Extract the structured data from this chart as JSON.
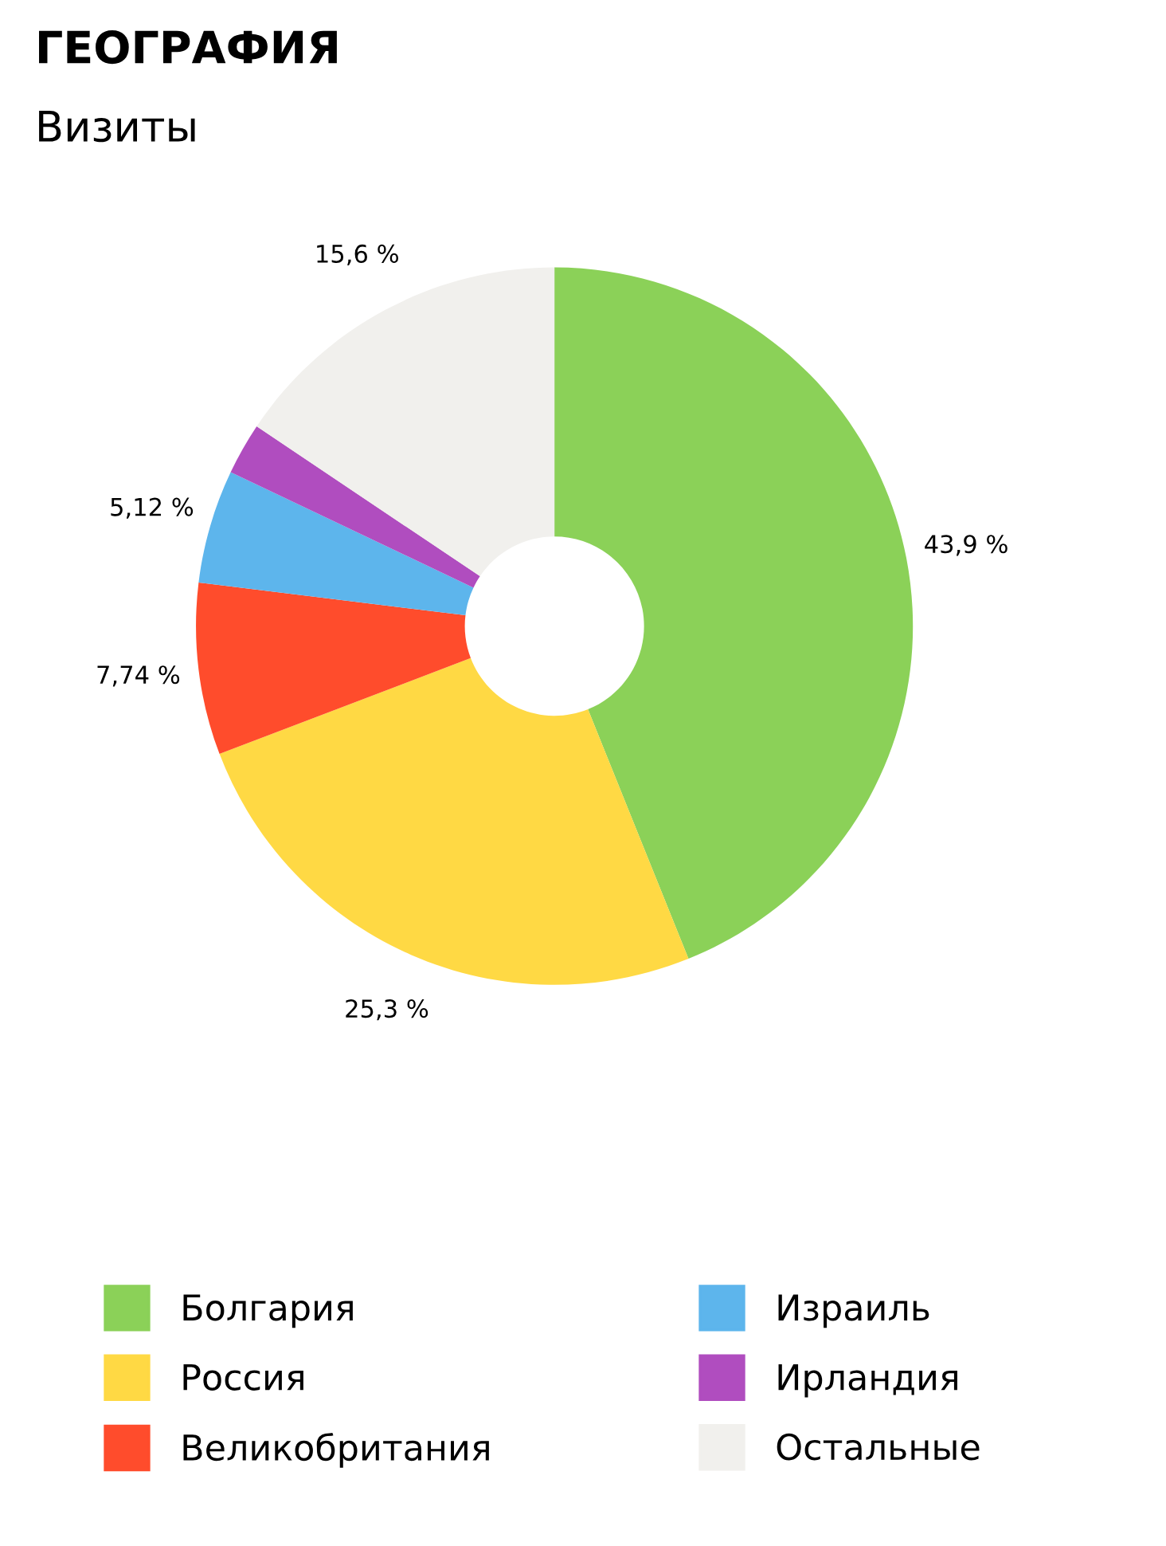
{
  "chart_data": {
    "type": "donut",
    "title": "ГЕОГРАФИЯ",
    "subtitle": "Визиты",
    "categories": [
      "Болгария",
      "Россия",
      "Великобритания",
      "Израиль",
      "Ирландия",
      "Остальные"
    ],
    "values": [
      43.9,
      25.3,
      7.74,
      5.12,
      2.34,
      15.6
    ],
    "colors": [
      "#8bd158",
      "#ffd944",
      "#ff4c2c",
      "#5db5ec",
      "#b04dbf",
      "#f1f0ed"
    ],
    "value_labels": [
      "43,9 %",
      "25,3 %",
      "7,74 %",
      "5,12 %",
      null,
      "15,6 %"
    ],
    "legend": "bottom"
  }
}
